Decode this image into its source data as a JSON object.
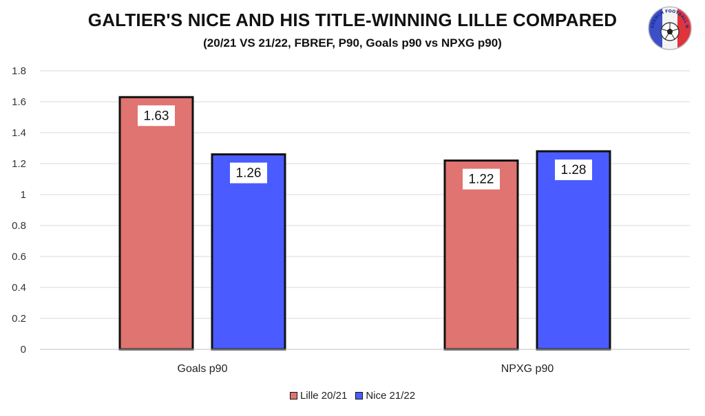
{
  "chart_data": {
    "type": "bar",
    "title": "GALTIER'S NICE AND HIS TITLE-WINNING LILLE COMPARED",
    "subtitle": "(20/21 VS 21/22, FBREF, P90, Goals p90 vs NPXG p90)",
    "categories": [
      "Goals p90",
      "NPXG p90"
    ],
    "series": [
      {
        "name": "Lille 20/21",
        "color": "#e07470",
        "values": [
          1.63,
          1.22
        ],
        "labels": [
          "1.63",
          "1.22"
        ]
      },
      {
        "name": "Nice 21/22",
        "color": "#4a5cff",
        "values": [
          1.26,
          1.28
        ],
        "labels": [
          "1.26",
          "1.28"
        ]
      }
    ],
    "yticks": [
      "0",
      "0.2",
      "0.4",
      "0.6",
      "0.8",
      "1",
      "1.2",
      "1.4",
      "1.6",
      "1.8"
    ],
    "ylim": [
      0,
      1.8
    ],
    "grid": true,
    "legend_position": "bottom"
  },
  "logo": {
    "text": "GET FRENCH FOOTBALL NEWS",
    "icon": "football-icon"
  }
}
